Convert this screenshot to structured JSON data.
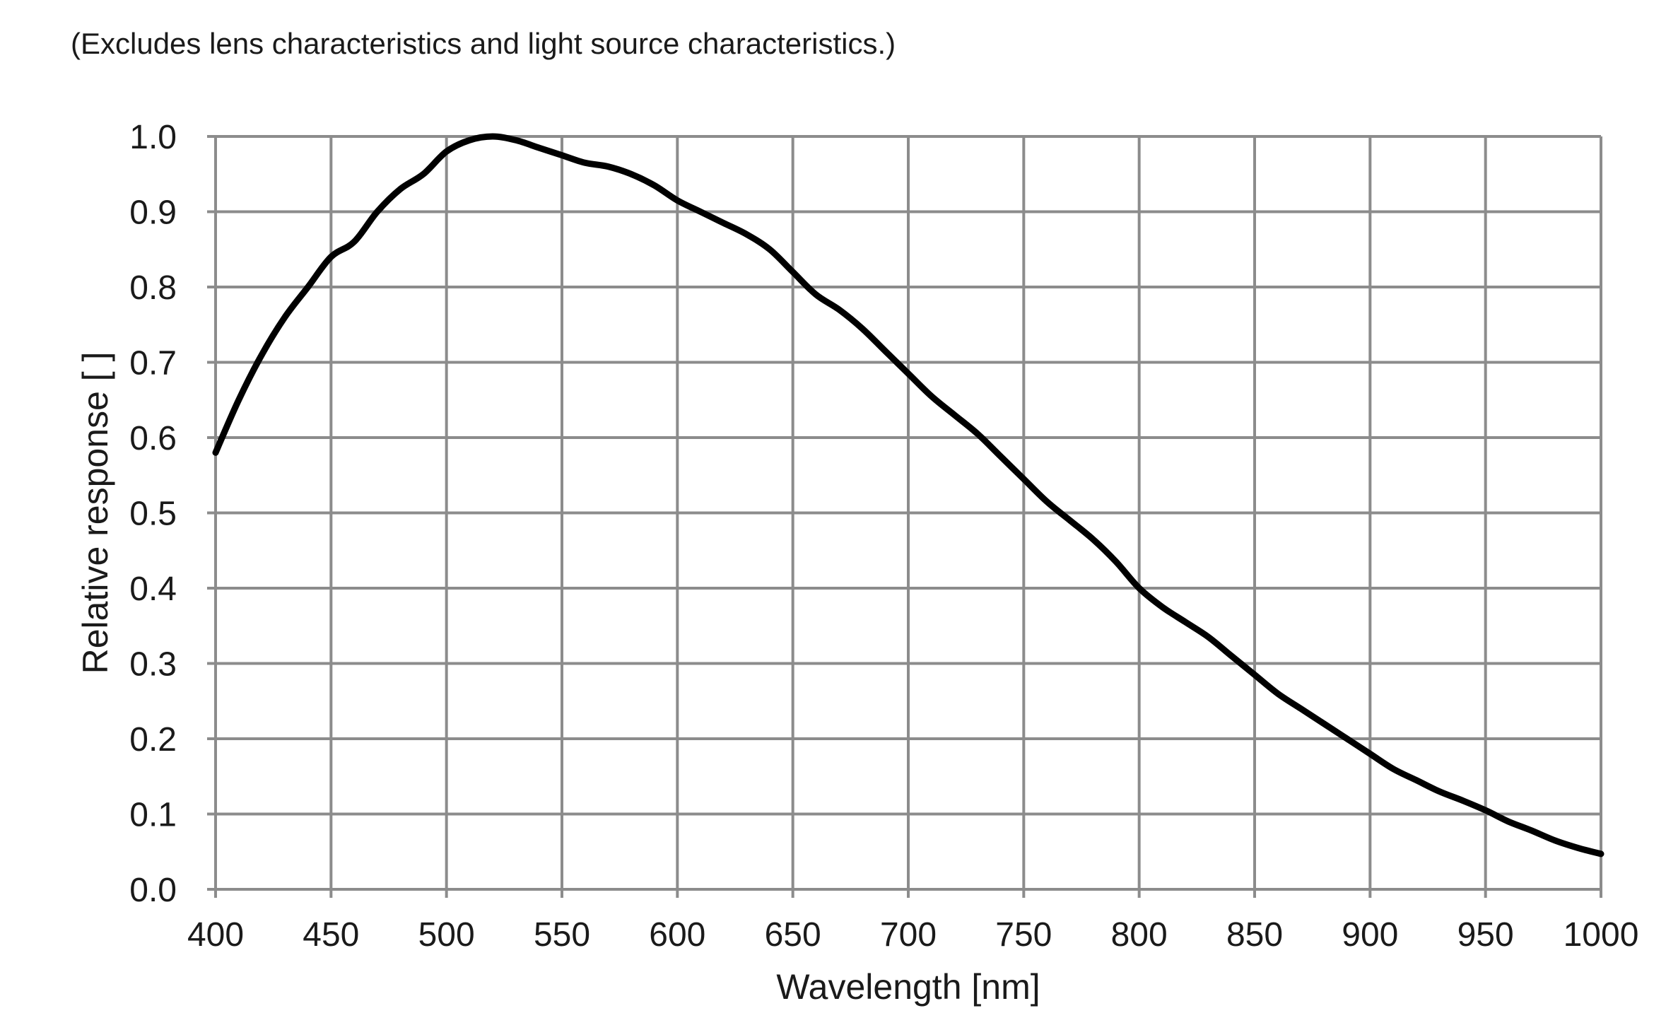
{
  "note": "(Excludes lens characteristics and light source characteristics.)",
  "chart_data": {
    "type": "line",
    "title": "",
    "xlabel": "Wavelength [nm]",
    "ylabel": "Relative response [ ]",
    "xlim": [
      400,
      1000
    ],
    "ylim": [
      0.0,
      1.0
    ],
    "xticks": [
      400,
      450,
      500,
      550,
      600,
      650,
      700,
      750,
      800,
      850,
      900,
      950,
      1000
    ],
    "yticks": [
      "0.0",
      "0.1",
      "0.2",
      "0.3",
      "0.4",
      "0.5",
      "0.6",
      "0.7",
      "0.8",
      "0.9",
      "1.0"
    ],
    "grid": true,
    "legend": "none",
    "line_color": "#000000",
    "grid_color": "#8c8c8c",
    "series": [
      {
        "x": [
          400,
          410,
          420,
          430,
          440,
          450,
          460,
          470,
          480,
          490,
          500,
          510,
          520,
          530,
          540,
          550,
          560,
          570,
          580,
          590,
          600,
          610,
          620,
          630,
          640,
          650,
          660,
          670,
          680,
          690,
          700,
          710,
          720,
          730,
          740,
          750,
          760,
          770,
          780,
          790,
          800,
          810,
          820,
          830,
          840,
          850,
          860,
          870,
          880,
          890,
          900,
          910,
          920,
          930,
          940,
          950,
          960,
          970,
          980,
          990,
          1000
        ],
        "y": [
          0.58,
          0.65,
          0.71,
          0.76,
          0.8,
          0.84,
          0.86,
          0.9,
          0.93,
          0.95,
          0.98,
          0.995,
          1.0,
          0.995,
          0.985,
          0.975,
          0.965,
          0.96,
          0.95,
          0.935,
          0.915,
          0.9,
          0.885,
          0.87,
          0.85,
          0.82,
          0.79,
          0.77,
          0.745,
          0.715,
          0.685,
          0.655,
          0.63,
          0.605,
          0.575,
          0.545,
          0.515,
          0.49,
          0.465,
          0.435,
          0.4,
          0.375,
          0.355,
          0.335,
          0.31,
          0.285,
          0.26,
          0.24,
          0.22,
          0.2,
          0.18,
          0.16,
          0.145,
          0.13,
          0.118,
          0.105,
          0.09,
          0.078,
          0.065,
          0.055,
          0.047
        ]
      }
    ]
  }
}
